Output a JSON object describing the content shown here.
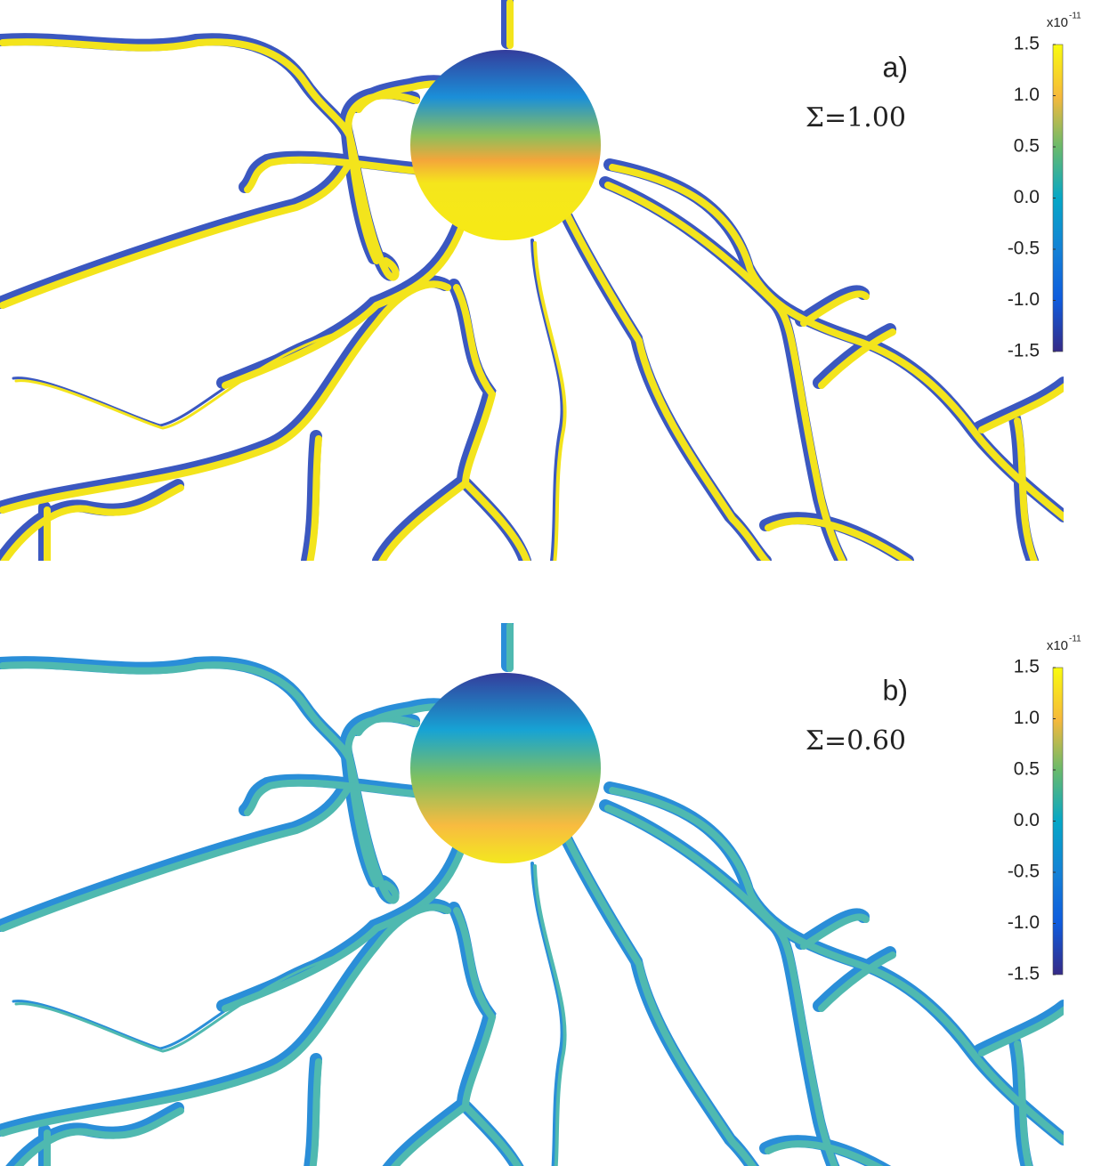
{
  "panels": [
    {
      "label": "a)",
      "sigma": "Σ=1.00",
      "colorbar": {
        "multiplier": "x10",
        "exponent": "-11",
        "range": [
          -1.5,
          1.5
        ],
        "ticks": [
          1.5,
          {
            "value": 1.0,
            "label": "1.0"
          },
          0.5,
          {
            "value": 0.0,
            "label": "0.0"
          },
          -0.5,
          {
            "value": -1.0,
            "label": "-1.0"
          },
          -1.5
        ]
      }
    },
    {
      "label": "b)",
      "sigma": "Σ=0.60",
      "colorbar": {
        "multiplier": "x10",
        "exponent": "-11",
        "range": [
          -1.5,
          1.5
        ],
        "ticks": [
          1.5,
          {
            "value": 1.0,
            "label": "1.0"
          },
          0.5,
          {
            "value": 0.0,
            "label": "0.0"
          },
          -0.5,
          {
            "value": -1.0,
            "label": "-1.0"
          },
          -1.5
        ]
      }
    }
  ]
}
